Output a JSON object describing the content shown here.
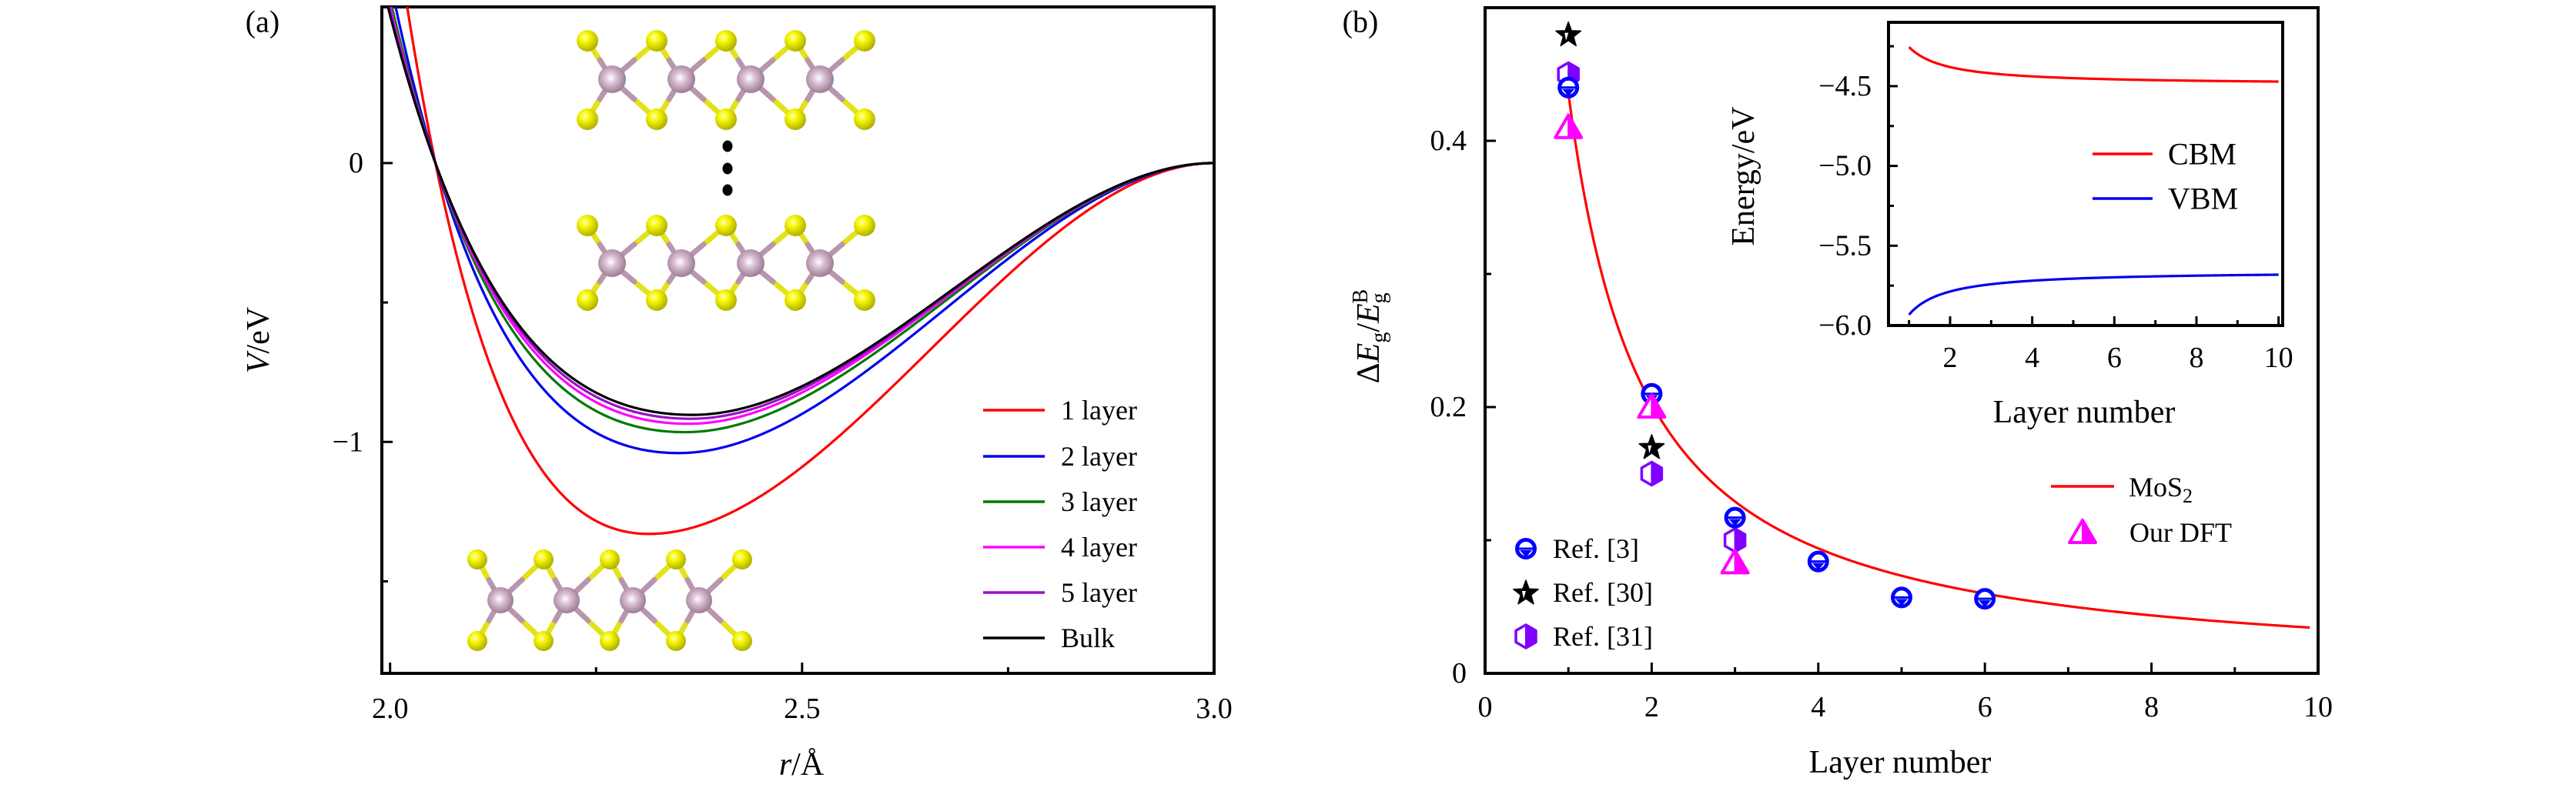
{
  "panel_labels": {
    "a": "(a)",
    "b": "(b)"
  },
  "structure_icons": [
    "mos2-multilayer-stack-illustration",
    "mos2-monolayer-illustration"
  ],
  "chart_data": [
    {
      "type": "line",
      "title": "",
      "xlabel": {
        "italic": "r",
        "text": "/Å"
      },
      "ylabel": {
        "italic": "V",
        "text": "/eV"
      },
      "xlim": [
        1.99,
        3.0
      ],
      "ylim": [
        -1.83,
        0.56
      ],
      "grid": false,
      "xticks": [
        {
          "value": 2.0,
          "label": "2.0"
        },
        {
          "value": 2.5,
          "label": "2.5"
        },
        {
          "value": 3.0,
          "label": "3.0"
        }
      ],
      "xminor": [
        2.25,
        2.75
      ],
      "yticks": [
        {
          "value": 0,
          "label": "0"
        },
        {
          "value": -1,
          "label": "−1"
        }
      ],
      "yminor": [
        -0.5,
        -1.5
      ],
      "legend_position": "center-right",
      "zero_crossing_r": 2.055,
      "cutoff_r": 3.0,
      "series": [
        {
          "name": "1 layer",
          "color": "#ff0000",
          "min_r": 2.314,
          "min_V": -1.33
        },
        {
          "name": "2 layer",
          "color": "#0000ee",
          "min_r": 2.35,
          "min_V": -1.04
        },
        {
          "name": "3 layer",
          "color": "#007a00",
          "min_r": 2.358,
          "min_V": -0.965
        },
        {
          "name": "4 layer",
          "color": "#ff00ff",
          "min_r": 2.362,
          "min_V": -0.935
        },
        {
          "name": "5 layer",
          "color": "#9a10c8",
          "min_r": 2.365,
          "min_V": -0.917
        },
        {
          "name": "Bulk",
          "color": "#000000",
          "min_r": 2.367,
          "min_V": -0.903
        }
      ]
    },
    {
      "type": "scatter",
      "title": "",
      "xlabel": "Layer number",
      "ylabel": {
        "delta": "Δ",
        "E": "E",
        "sub": "g",
        "slash": "/",
        "E2": "E",
        "sub2": "g",
        "sup2": "B"
      },
      "xlim": [
        0,
        10
      ],
      "ylim": [
        0,
        0.5
      ],
      "grid": false,
      "xticks": [
        {
          "value": 0,
          "label": "0"
        },
        {
          "value": 2,
          "label": "2"
        },
        {
          "value": 4,
          "label": "4"
        },
        {
          "value": 6,
          "label": "6"
        },
        {
          "value": 8,
          "label": "8"
        },
        {
          "value": 10,
          "label": "10"
        }
      ],
      "xminor": [
        1,
        3,
        5,
        7,
        9
      ],
      "yticks": [
        {
          "value": 0,
          "label": "0"
        },
        {
          "value": 0.2,
          "label": "0.2"
        },
        {
          "value": 0.4,
          "label": "0.4"
        }
      ],
      "yminor": [
        0.1,
        0.3
      ],
      "curve": {
        "name": "MoS",
        "name_sub": "2",
        "color": "#ff0000",
        "fit_A": 0.436,
        "fit_b": 1.108,
        "x": [
          1,
          2,
          3,
          4,
          5,
          6,
          7,
          8,
          9,
          9.9
        ],
        "y": [
          0.436,
          0.202,
          0.129,
          0.094,
          0.073,
          0.06,
          0.051,
          0.044,
          0.038,
          0.034
        ]
      },
      "series": [
        {
          "name": "Ref. [31]",
          "marker": "half-filled-hexagon",
          "color": "#7f00ff",
          "points": [
            [
              1,
              0.45
            ],
            [
              2,
              0.15
            ],
            [
              3,
              0.1
            ]
          ]
        },
        {
          "name": "Ref. [3]",
          "marker": "barred-circle",
          "color": "#0000ff",
          "points": [
            [
              1,
              0.44
            ],
            [
              2,
              0.21
            ],
            [
              3,
              0.117
            ],
            [
              4,
              0.084
            ],
            [
              5,
              0.057
            ],
            [
              6,
              0.056
            ]
          ]
        },
        {
          "name": "Ref. [30]",
          "marker": "star",
          "color": "#000000",
          "points": [
            [
              1,
              0.48
            ],
            [
              2,
              0.17
            ]
          ]
        },
        {
          "name": "Our DFT",
          "marker": "half-filled-triangle",
          "color": "#ff00ff",
          "points": [
            [
              1,
              0.41
            ],
            [
              2,
              0.2
            ],
            [
              3,
              0.083
            ]
          ]
        }
      ],
      "legend_left_order": [
        1,
        2,
        0
      ],
      "legend_right_marker_series": 3,
      "legend_left_position": "bottom-left",
      "legend_right_position": "right"
    },
    {
      "type": "line",
      "title": "",
      "xlabel": "Layer number",
      "ylabel": "Energy/eV",
      "xlim": [
        0.5,
        10.1
      ],
      "ylim": [
        -6.0,
        -4.1
      ],
      "grid": false,
      "xticks": [
        {
          "value": 2,
          "label": "2"
        },
        {
          "value": 4,
          "label": "4"
        },
        {
          "value": 6,
          "label": "6"
        },
        {
          "value": 8,
          "label": "8"
        },
        {
          "value": 10,
          "label": "10"
        }
      ],
      "xminor": [
        1,
        3,
        5,
        7,
        9
      ],
      "yticks": [
        {
          "value": -4.5,
          "label": "−4.5"
        },
        {
          "value": -5.0,
          "label": "−5.0"
        },
        {
          "value": -5.5,
          "label": "−5.5"
        },
        {
          "value": -6.0,
          "label": "−6.0"
        }
      ],
      "yminor": [
        -4.25,
        -4.75,
        -5.25,
        -5.75
      ],
      "legend_position": "center-right",
      "series": [
        {
          "name": "CBM",
          "color": "#ff0000",
          "E_inf": -4.49,
          "c": 0.235,
          "p": 1.1,
          "x": [
            1,
            2,
            3,
            4,
            5,
            6,
            7,
            8,
            9,
            10
          ],
          "y": [
            -4.255,
            -4.381,
            -4.42,
            -4.439,
            -4.45,
            -4.457,
            -4.462,
            -4.466,
            -4.469,
            -4.471
          ]
        },
        {
          "name": "VBM",
          "color": "#0000ee",
          "E_inf": -5.66,
          "c": -0.272,
          "p": 1.1,
          "x": [
            1,
            2,
            3,
            4,
            5,
            6,
            7,
            8,
            9,
            10
          ],
          "y": [
            -5.932,
            -5.787,
            -5.741,
            -5.719,
            -5.706,
            -5.698,
            -5.692,
            -5.688,
            -5.684,
            -5.682
          ]
        }
      ]
    }
  ]
}
